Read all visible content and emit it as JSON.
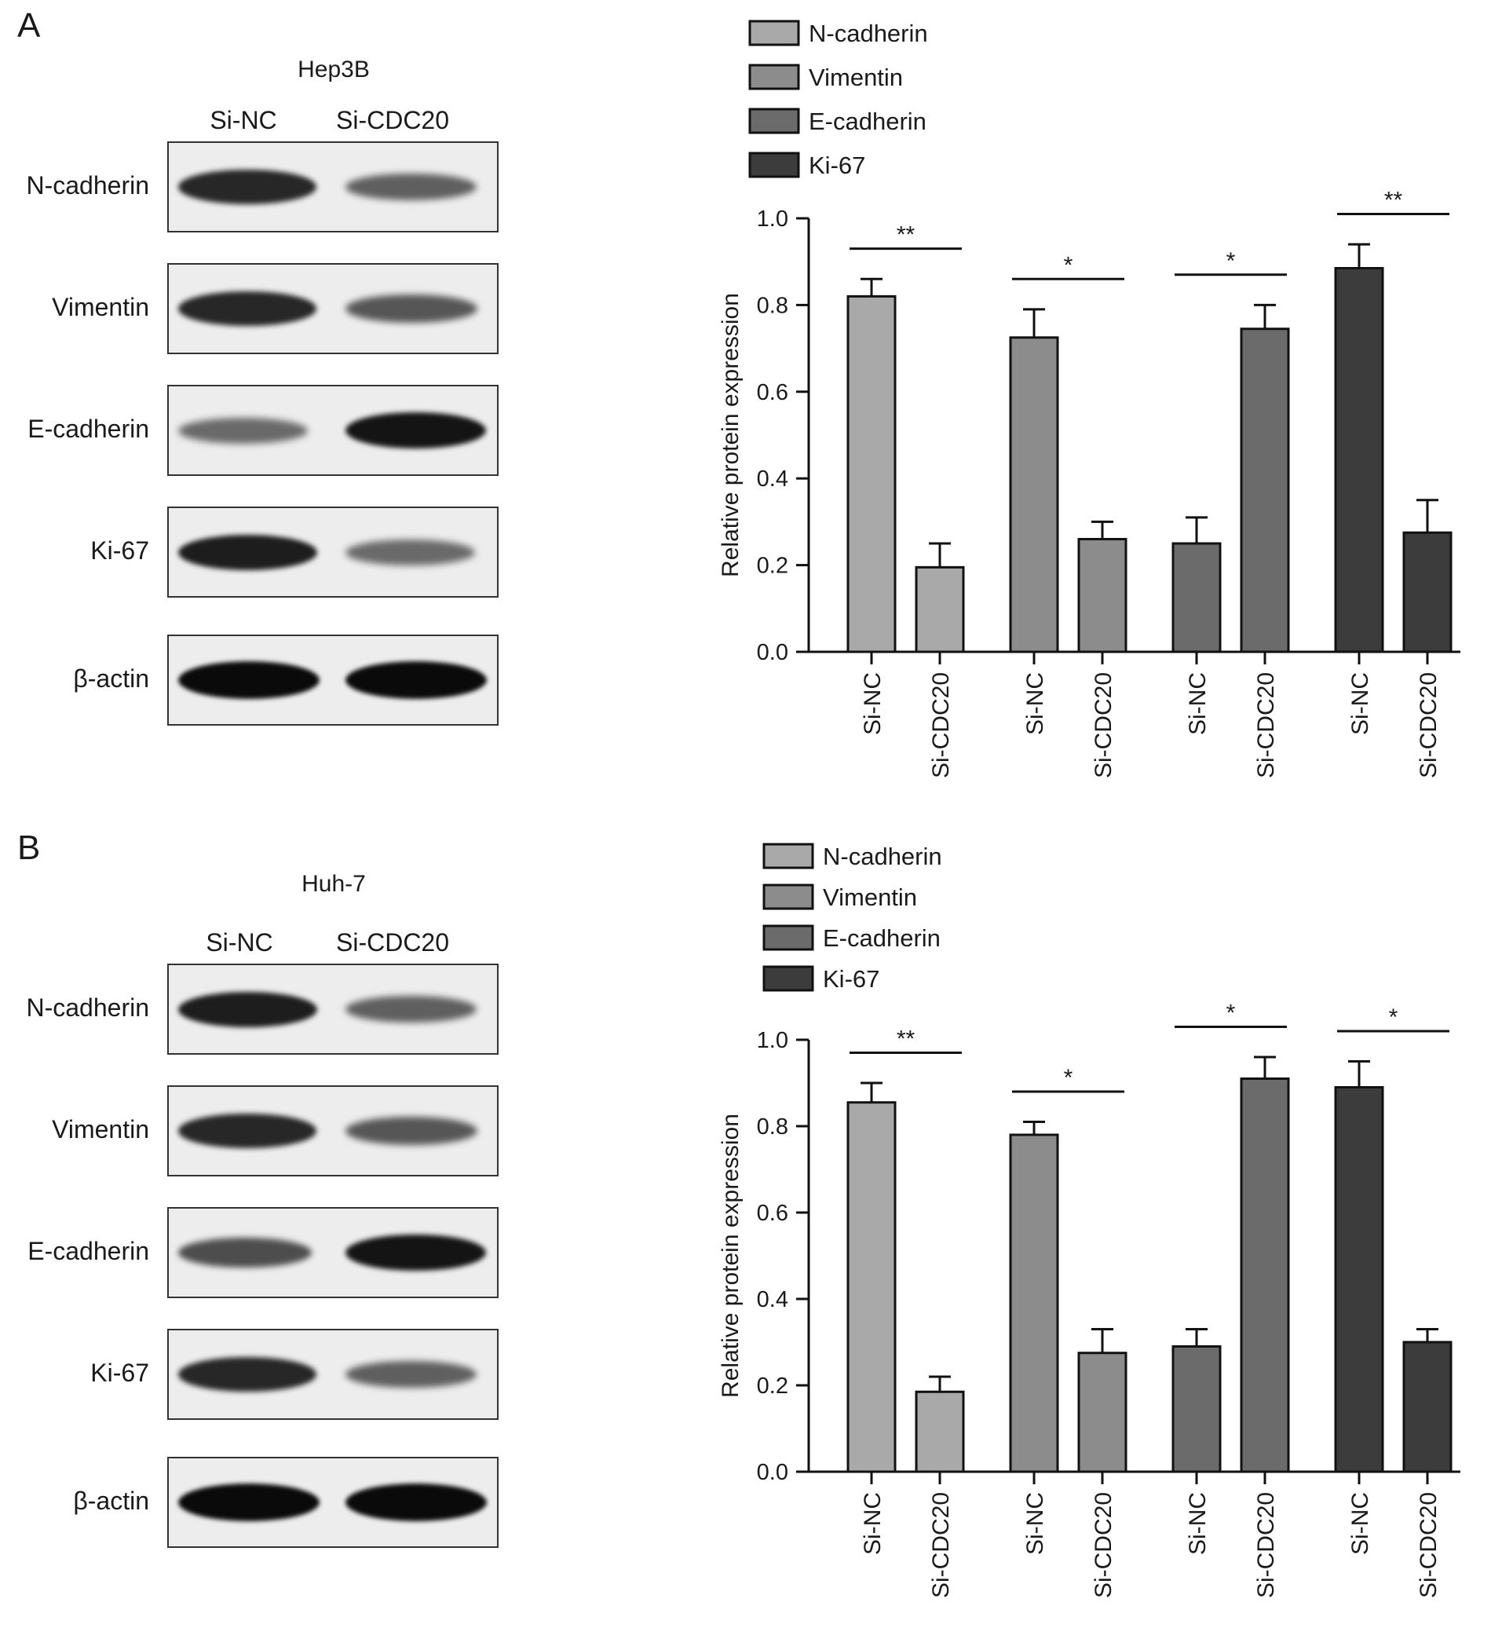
{
  "panels": [
    {
      "letter": "A",
      "blot": {
        "cell_line": "Hep3B",
        "lanes": [
          "Si-NC",
          "Si-CDC20"
        ],
        "bands": [
          {
            "label": "N-cadherin",
            "intensity": [
              0.85,
              0.55
            ]
          },
          {
            "label": "Vimentin",
            "intensity": [
              0.85,
              0.6
            ]
          },
          {
            "label": "E-cadherin",
            "intensity": [
              0.5,
              0.95
            ]
          },
          {
            "label": "Ki-67",
            "intensity": [
              0.9,
              0.5
            ]
          },
          {
            "label": "β-actin",
            "intensity": [
              1.0,
              1.0
            ]
          }
        ]
      }
    },
    {
      "letter": "B",
      "blot": {
        "cell_line": "Huh-7",
        "lanes": [
          "Si-NC",
          "Si-CDC20"
        ],
        "bands": [
          {
            "label": "N-cadherin",
            "intensity": [
              0.9,
              0.55
            ]
          },
          {
            "label": "Vimentin",
            "intensity": [
              0.85,
              0.6
            ]
          },
          {
            "label": "E-cadherin",
            "intensity": [
              0.65,
              0.95
            ]
          },
          {
            "label": "Ki-67",
            "intensity": [
              0.85,
              0.55
            ]
          },
          {
            "label": "β-actin",
            "intensity": [
              1.0,
              1.0
            ]
          }
        ]
      }
    }
  ],
  "chart_data": [
    {
      "type": "bar",
      "ylabel": "Relative protein expression",
      "ylim": [
        0,
        1.0
      ],
      "yticks": [
        "0.0",
        "0.2",
        "0.4",
        "0.6",
        "0.8",
        "1.0"
      ],
      "categories": [
        "Si-NC",
        "Si-CDC20"
      ],
      "legend_position": "top",
      "series": [
        {
          "name": "N-cadherin",
          "color": "#a9a9a9",
          "values": [
            0.82,
            0.195
          ],
          "errors": [
            0.04,
            0.055
          ],
          "significance": "**"
        },
        {
          "name": "Vimentin",
          "color": "#8c8c8c",
          "values": [
            0.725,
            0.26
          ],
          "errors": [
            0.065,
            0.04
          ],
          "significance": "*"
        },
        {
          "name": "E-cadherin",
          "color": "#6b6b6b",
          "values": [
            0.25,
            0.745
          ],
          "errors": [
            0.06,
            0.055
          ],
          "significance": "*"
        },
        {
          "name": "Ki-67",
          "color": "#3c3c3c",
          "values": [
            0.885,
            0.275
          ],
          "errors": [
            0.055,
            0.075
          ],
          "significance": "**"
        }
      ]
    },
    {
      "type": "bar",
      "ylabel": "Relative protein expression",
      "ylim": [
        0,
        1.0
      ],
      "yticks": [
        "0.0",
        "0.2",
        "0.4",
        "0.6",
        "0.8",
        "1.0"
      ],
      "categories": [
        "Si-NC",
        "Si-CDC20"
      ],
      "legend_position": "top",
      "series": [
        {
          "name": "N-cadherin",
          "color": "#a9a9a9",
          "values": [
            0.855,
            0.185
          ],
          "errors": [
            0.045,
            0.035
          ],
          "significance": "**"
        },
        {
          "name": "Vimentin",
          "color": "#8c8c8c",
          "values": [
            0.78,
            0.275
          ],
          "errors": [
            0.03,
            0.055
          ],
          "significance": "*"
        },
        {
          "name": "E-cadherin",
          "color": "#6b6b6b",
          "values": [
            0.29,
            0.91
          ],
          "errors": [
            0.04,
            0.05
          ],
          "significance": "*"
        },
        {
          "name": "Ki-67",
          "color": "#3c3c3c",
          "values": [
            0.89,
            0.3
          ],
          "errors": [
            0.06,
            0.03
          ],
          "significance": "*"
        }
      ]
    }
  ]
}
